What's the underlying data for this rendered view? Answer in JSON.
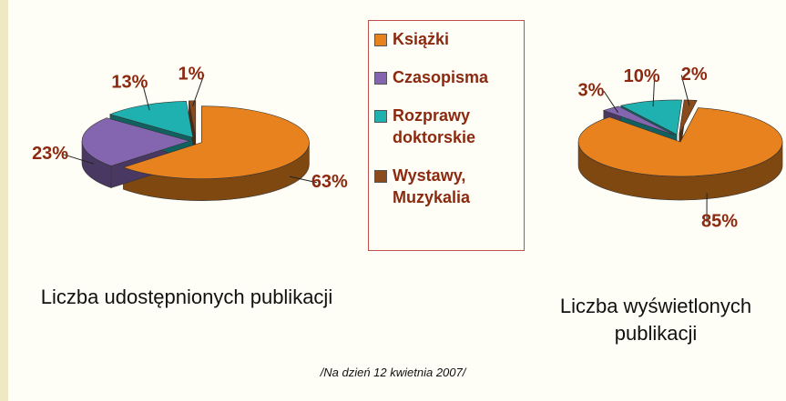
{
  "chart_data": [
    {
      "type": "pie",
      "title": "Liczba udostępnionych publikacji",
      "categories": [
        "Książki",
        "Czasopisma",
        "Rozprawy doktorskie",
        "Wystawy, Muzykalia"
      ],
      "values": [
        63,
        23,
        13,
        1
      ],
      "value_labels": [
        "63%",
        "23%",
        "13%",
        "1%"
      ],
      "colors": [
        "#e8821e",
        "#8466b0",
        "#1fb0b0",
        "#8b4a1c"
      ]
    },
    {
      "type": "pie",
      "title": "Liczba wyświetlonych publikacji",
      "categories": [
        "Książki",
        "Czasopisma",
        "Rozprawy doktorskie",
        "Wystawy, Muzykalia"
      ],
      "values": [
        85,
        3,
        10,
        2
      ],
      "value_labels": [
        "85%",
        "3%",
        "10%",
        "2%"
      ],
      "colors": [
        "#e8821e",
        "#8466b0",
        "#1fb0b0",
        "#8b4a1c"
      ]
    }
  ],
  "footnote": "/Na dzień 12 kwietnia 2007/"
}
